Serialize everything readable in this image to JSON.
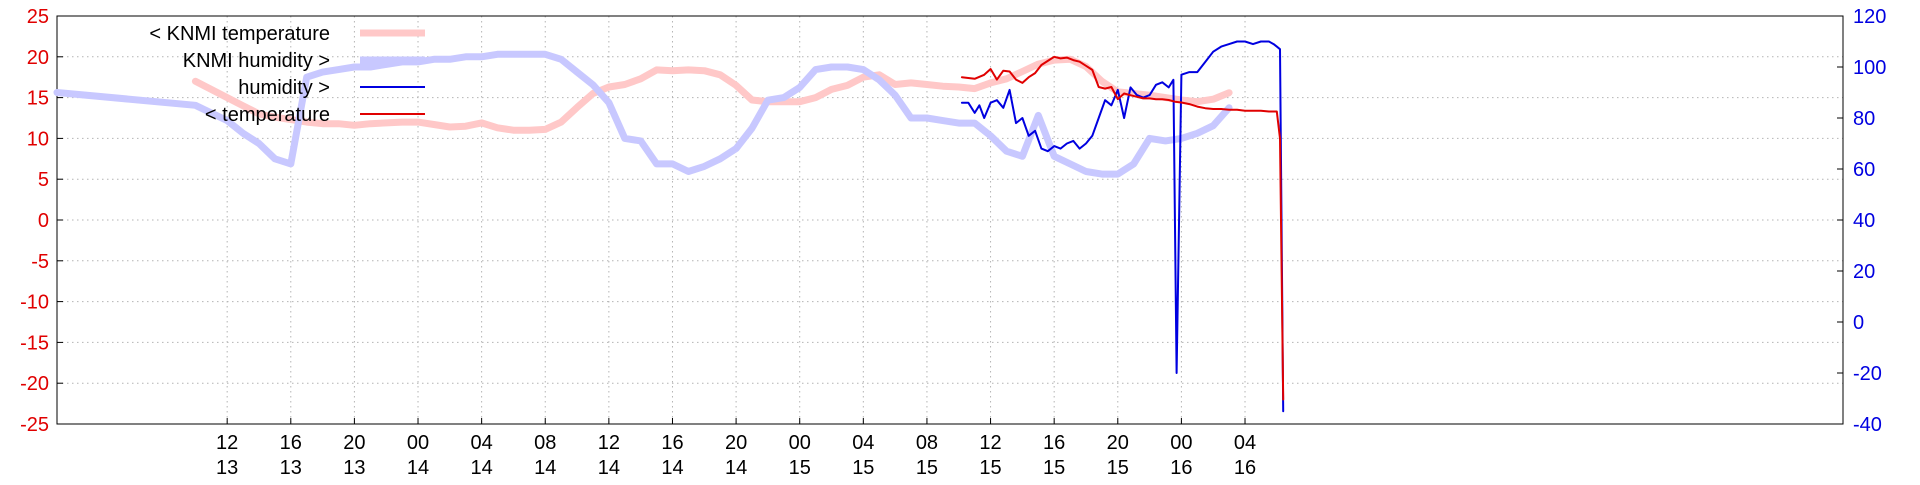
{
  "chart_data": {
    "type": "line",
    "x_unit": "hours",
    "x_domain": [
      -10.7,
      101.6
    ],
    "x_ticks": [
      {
        "x": 0,
        "label": "12",
        "sublabel": "13"
      },
      {
        "x": 4,
        "label": "16",
        "sublabel": "13"
      },
      {
        "x": 8,
        "label": "20",
        "sublabel": "13"
      },
      {
        "x": 12,
        "label": "00",
        "sublabel": "14"
      },
      {
        "x": 16,
        "label": "04",
        "sublabel": "14"
      },
      {
        "x": 20,
        "label": "08",
        "sublabel": "14"
      },
      {
        "x": 24,
        "label": "12",
        "sublabel": "14"
      },
      {
        "x": 28,
        "label": "16",
        "sublabel": "14"
      },
      {
        "x": 32,
        "label": "20",
        "sublabel": "14"
      },
      {
        "x": 36,
        "label": "00",
        "sublabel": "15"
      },
      {
        "x": 40,
        "label": "04",
        "sublabel": "15"
      },
      {
        "x": 44,
        "label": "08",
        "sublabel": "15"
      },
      {
        "x": 48,
        "label": "12",
        "sublabel": "15"
      },
      {
        "x": 52,
        "label": "16",
        "sublabel": "15"
      },
      {
        "x": 56,
        "label": "20",
        "sublabel": "15"
      },
      {
        "x": 60,
        "label": "00",
        "sublabel": "16"
      },
      {
        "x": 64,
        "label": "04",
        "sublabel": "16"
      }
    ],
    "y_left": {
      "range": [
        -25,
        25
      ],
      "ticks": [
        -25,
        -20,
        -15,
        -10,
        -5,
        0,
        5,
        10,
        15,
        20,
        25
      ],
      "color": "#e00000"
    },
    "y_right": {
      "range": [
        -40,
        120
      ],
      "ticks": [
        -40,
        -20,
        0,
        20,
        40,
        60,
        80,
        100,
        120
      ],
      "color": "#0000e0"
    },
    "grid": true,
    "legend_position": "top-left",
    "series": [
      {
        "name": "< KNMI temperature",
        "axis": "left",
        "color": "#ffc8c8",
        "style": "thick",
        "x": [
          -2,
          0,
          1,
          2,
          3,
          4,
          5,
          6,
          7,
          8,
          9,
          10,
          11,
          12,
          13,
          14,
          15,
          16,
          17,
          18,
          19,
          20,
          21,
          22,
          23,
          24,
          25,
          26,
          27,
          28,
          29,
          30,
          31,
          32,
          33,
          34,
          35,
          36,
          37,
          38,
          39,
          40,
          41,
          42,
          43,
          44,
          45,
          46,
          47,
          48,
          49,
          50,
          51,
          52,
          53,
          54,
          55,
          56,
          57,
          58,
          59,
          60,
          61,
          62,
          63
        ],
        "y": [
          17.0,
          15.0,
          14.0,
          13.0,
          12.6,
          12.3,
          12.0,
          11.8,
          11.8,
          11.6,
          11.8,
          11.9,
          12.0,
          12.0,
          11.7,
          11.4,
          11.5,
          11.9,
          11.3,
          11.0,
          11.0,
          11.1,
          12.0,
          13.8,
          15.5,
          16.3,
          16.6,
          17.3,
          18.4,
          18.3,
          18.4,
          18.3,
          17.8,
          16.5,
          14.7,
          14.5,
          14.5,
          14.5,
          15.0,
          16.0,
          16.5,
          17.5,
          17.8,
          16.6,
          16.8,
          16.6,
          16.4,
          16.3,
          16.1,
          16.8,
          17.3,
          18.2,
          19.1,
          19.6,
          19.7,
          18.8,
          17.0,
          15.7,
          15.5,
          15.3,
          15.0,
          14.7,
          14.5,
          14.8,
          15.6
        ]
      },
      {
        "name": "KNMI humidity >",
        "axis": "right",
        "color": "#c8c8ff",
        "style": "thick",
        "x": [
          -10.7,
          -2,
          0,
          1,
          2,
          3,
          4,
          5,
          6,
          7,
          8,
          9,
          10,
          11,
          12,
          13,
          14,
          15,
          16,
          17,
          18,
          19,
          20,
          21,
          22,
          23,
          24,
          25,
          26,
          27,
          28,
          29,
          30,
          31,
          32,
          33,
          34,
          35,
          36,
          37,
          38,
          39,
          40,
          41,
          42,
          43,
          44,
          45,
          46,
          47,
          48,
          49,
          50,
          51,
          52,
          53,
          54,
          55,
          56,
          57,
          58,
          59,
          60,
          61,
          62,
          63
        ],
        "y": [
          90,
          85,
          79,
          74,
          70,
          64,
          62,
          96,
          98,
          99,
          100,
          100,
          101,
          102,
          102,
          103,
          103,
          104,
          104,
          105,
          105,
          105,
          105,
          103,
          98,
          93,
          86,
          72,
          71,
          62,
          62,
          59,
          61,
          64,
          68,
          76,
          87,
          88,
          92,
          99,
          100,
          100,
          99,
          95,
          89,
          80,
          80,
          79,
          78,
          78,
          73,
          67,
          65,
          81,
          65,
          62,
          59,
          58,
          58,
          62,
          72,
          71,
          72,
          74,
          77,
          84
        ]
      },
      {
        "name": "humidity >",
        "axis": "right",
        "color": "#0000e0",
        "style": "thin",
        "x": [
          46.2,
          46.6,
          47.0,
          47.3,
          47.6,
          48.0,
          48.4,
          48.8,
          49.2,
          49.6,
          50.0,
          50.4,
          50.8,
          51.2,
          51.6,
          52.0,
          52.4,
          52.8,
          53.2,
          53.6,
          54.0,
          54.4,
          54.8,
          55.2,
          55.6,
          56.0,
          56.4,
          56.8,
          57.2,
          57.6,
          58.0,
          58.4,
          58.8,
          59.2,
          59.5,
          59.7,
          60.0,
          60.5,
          61.0,
          61.5,
          62.0,
          62.5,
          63.0,
          63.5,
          64.0,
          64.5,
          65.0,
          65.5,
          65.8,
          66.0,
          66.2,
          66.4
        ],
        "y": [
          86,
          86,
          82,
          85,
          80,
          86,
          87,
          84,
          91,
          78,
          80,
          73,
          75,
          68,
          67,
          69,
          68,
          70,
          71,
          68,
          70,
          73,
          80,
          87,
          85,
          91,
          80,
          92,
          89,
          88,
          89,
          93,
          94,
          92,
          95,
          -20,
          97,
          98,
          98,
          102,
          106,
          108,
          109,
          110,
          110,
          109,
          110,
          110,
          109,
          108,
          107,
          -35
        ]
      },
      {
        "name": "< temperature",
        "axis": "left",
        "color": "#e00000",
        "style": "thin",
        "x": [
          46.2,
          47.0,
          47.6,
          48.0,
          48.4,
          48.8,
          49.2,
          49.6,
          50.0,
          50.4,
          50.8,
          51.2,
          51.6,
          52.0,
          52.4,
          52.8,
          53.2,
          53.6,
          54.0,
          54.4,
          54.8,
          55.2,
          55.6,
          56.0,
          56.4,
          56.8,
          57.2,
          57.6,
          58.0,
          58.4,
          58.8,
          59.2,
          59.6,
          60.0,
          60.5,
          61.0,
          61.5,
          62.0,
          62.5,
          63.0,
          63.5,
          64.0,
          64.5,
          65.0,
          65.5,
          66.0,
          66.2,
          66.4
        ],
        "y": [
          17.5,
          17.3,
          17.8,
          18.5,
          17.2,
          18.3,
          18.2,
          17.2,
          16.8,
          17.5,
          18.0,
          19.0,
          19.5,
          20.0,
          19.8,
          19.9,
          19.6,
          19.4,
          18.9,
          18.4,
          16.3,
          16.1,
          16.3,
          14.8,
          15.5,
          15.3,
          15.1,
          14.9,
          14.9,
          14.8,
          14.8,
          14.7,
          14.5,
          14.4,
          14.2,
          13.9,
          13.7,
          13.6,
          13.6,
          13.5,
          13.5,
          13.4,
          13.4,
          13.4,
          13.3,
          13.3,
          10.0,
          -22
        ]
      }
    ]
  }
}
